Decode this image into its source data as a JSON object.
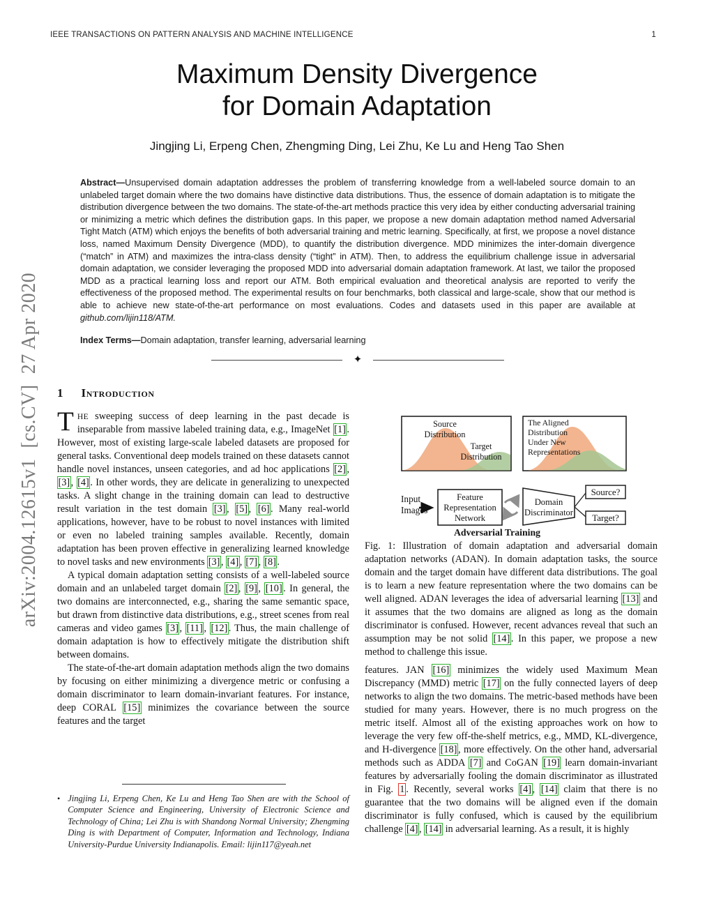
{
  "header": {
    "journal": "IEEE TRANSACTIONS ON PATTERN ANALYSIS AND MACHINE INTELLIGENCE",
    "page": "1"
  },
  "arxiv_stamp": "arXiv:2004.12615v1  [cs.CV]  27 Apr 2020",
  "title": {
    "line1": "Maximum Density Divergence",
    "line2": "for Domain Adaptation"
  },
  "authors": "Jingjing Li, Erpeng Chen, Zhengming Ding, Lei Zhu, Ke Lu and Heng Tao Shen",
  "abstract": {
    "label": "Abstract—",
    "tokens": [
      "Unsupervised domain adaptation addresses the problem of transferring knowledge from a well-labeled source domain to an unlabeled target domain where the two domains have distinctive data distributions. Thus, the essence of domain adaptation is to mitigate the distribution divergence between the two domains. The state-of-the-art methods practice this very idea by either conducting adversarial training or minimizing a metric which defines the distribution gaps. In this paper, we propose a new domain adaptation method named Adversarial Tight Match (ATM) which enjoys the benefits of both adversarial training and metric learning. Specifically, at first, we propose a novel distance loss, named Maximum Density Divergence (MDD), to quantify the distribution divergence. MDD minimizes the inter-domain divergence (“match” in ATM) and maximizes the intra-class density (“tight” in ATM). Then, to address the equilibrium challenge issue in adversarial domain adaptation, we consider leveraging the proposed MDD into adversarial domain adaptation framework. At last, we tailor the proposed MDD as a practical learning loss and report our ATM. Both empirical evaluation and theoretical analysis are reported to verify the effectiveness of the proposed method. The experimental results on four benchmarks, both classical and large-scale, show that our method is able to achieve new state-of-the-art performance on most evaluations. Codes and datasets used in this paper are available at ",
      {
        "link": "github.com/lijin118/ATM."
      }
    ]
  },
  "index_terms": {
    "label": "Index Terms—",
    "text": "Domain adaptation, transfer learning, adversarial learning"
  },
  "separator_glyph": "✦",
  "section": {
    "number": "1",
    "title": "Introduction"
  },
  "intro": {
    "dropcap": "T",
    "lead": "HE",
    "p1": [
      " sweeping success of deep learning in the past decade is inseparable from massive labeled training data, e.g., ImageNet ",
      {
        "cite": "1"
      },
      ". However, most of existing large-scale labeled datasets are proposed for general tasks. Conventional deep models trained on these datasets cannot handle novel instances, unseen categories, and ad hoc applications ",
      {
        "cite": "2"
      },
      ", ",
      {
        "cite": "3"
      },
      ", ",
      {
        "cite": "4"
      },
      ". In other words, they are delicate in generalizing to unexpected tasks. A slight change in the training domain can lead to destructive result variation in the test domain ",
      {
        "cite": "3"
      },
      ", ",
      {
        "cite": "5"
      },
      ", ",
      {
        "cite": "6"
      },
      ". Many real-world applications, however, have to be robust to novel instances with limited or even no labeled training samples available. Recently, domain adaptation has been proven effective in generalizing learned knowledge to novel tasks and new environments ",
      {
        "cite": "3"
      },
      ", ",
      {
        "cite": "4"
      },
      ", ",
      {
        "cite": "7"
      },
      ", ",
      {
        "cite": "8"
      },
      "."
    ],
    "p2": [
      "A typical domain adaptation setting consists of a well-labeled source domain and an unlabeled target domain ",
      {
        "cite": "2"
      },
      ", ",
      {
        "cite": "9"
      },
      ", ",
      {
        "cite": "10"
      },
      ". In general, the two domains are interconnected, e.g., sharing the same semantic space, but drawn from distinctive data distributions, e.g., street scenes from real cameras and video games ",
      {
        "cite": "3"
      },
      ", ",
      {
        "cite": "11"
      },
      ", ",
      {
        "cite": "12"
      },
      ". Thus, the main challenge of domain adaptation is how to effectively mitigate the distribution shift between domains."
    ],
    "p3": [
      "The state-of-the-art domain adaptation methods align the two domains by focusing on either minimizing a divergence metric or confusing a domain discriminator to learn domain-invariant features. For instance, deep CORAL ",
      {
        "cite": "15"
      },
      " minimizes the covariance between the source features and the target"
    ]
  },
  "footnote": {
    "bullet": "•",
    "text": "Jingjing Li, Erpeng Chen, Ke Lu and Heng Tao Shen are with the School of Computer Science and Engineering, University of Electronic Science and Technology of China; Lei Zhu is with Shandong Normal University; Zhengming Ding is with Department of Computer, Information and Technology, Indiana University-Purdue University Indianapolis. Email: lijin117@yeah.net"
  },
  "figure": {
    "left_box": {
      "source_label": [
        "Source",
        "Distribution"
      ],
      "target_label": [
        "Target",
        "Distribution"
      ]
    },
    "right_box": {
      "label": [
        "The Aligned",
        "Distribution",
        "Under New",
        "Representations"
      ]
    },
    "network": {
      "input_label": [
        "Input",
        "Images"
      ],
      "frn_label": [
        "Feature",
        "Representation",
        "Network"
      ],
      "disc_label": [
        "Domain",
        "Discriminator"
      ],
      "source_q": "Source?",
      "target_q": "Target?",
      "adv_label": "Adversarial Training"
    },
    "caption": [
      "Fig. 1: Illustration of domain adaptation and adversarial domain adaptation networks (ADAN). In domain adaptation tasks, the source domain and the target domain have different data distributions. The goal is to learn a new feature representation where the two domains can be well aligned. ADAN leverages the idea of adversarial learning ",
      {
        "cite": "13"
      },
      " and it assumes that the two domains are aligned as long as the domain discriminator is confused. However, recent advances reveal that such an assumption may be not solid ",
      {
        "cite": "14"
      },
      ". In this paper, we propose a new method to challenge this issue."
    ]
  },
  "body_right": {
    "p1": [
      "features. JAN ",
      {
        "cite": "16"
      },
      " minimizes the widely used Maximum Mean Discrepancy (MMD) metric ",
      {
        "cite": "17"
      },
      " on the fully connected layers of deep networks to align the two domains. The metric-based methods have been studied for many years. However, there is no much progress on the metric itself. Almost all of the existing approaches work on how to leverage the very few off-the-shelf metrics, e.g., MMD, KL-divergence, and H-divergence ",
      {
        "cite": "18"
      },
      ", more effectively. On the other hand, adversarial methods such as ADDA ",
      {
        "cite": "7"
      },
      " and CoGAN ",
      {
        "cite": "19"
      },
      " learn domain-invariant features by adversarially fooling the domain discriminator as illustrated in Fig. ",
      {
        "figref": "1"
      },
      ". Recently, several works ",
      {
        "cite": "4"
      },
      ", ",
      {
        "cite": "14"
      },
      " claim that there is no guarantee that the two domains will be aligned even if the domain discriminator is fully confused, which is caused by the equilibrium challenge ",
      {
        "cite": "4"
      },
      ", ",
      {
        "cite": "14"
      },
      " in adversarial learning. As a result, it is highly"
    ]
  },
  "colors": {
    "citation_green": "#2cb52c",
    "figref_red": "#df372e",
    "source_dist_orange": "#f1ad83",
    "target_dist_green": "#a7c593",
    "arxiv_gray": "#7a7a7a"
  }
}
